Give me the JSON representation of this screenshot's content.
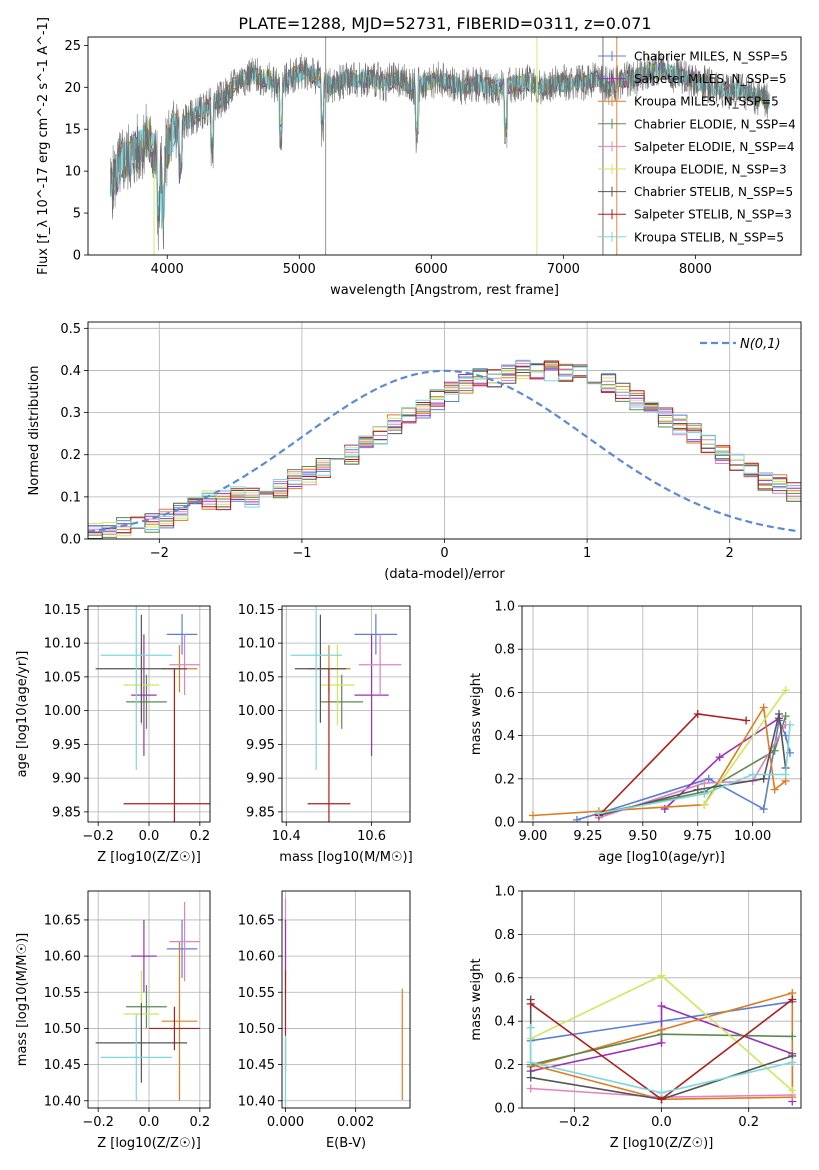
{
  "title": "PLATE=1288, MJD=52731, FIBERID=0311, z=0.071",
  "colors": {
    "Chabrier MILES": "#5b7fd6",
    "Salpeter MILES": "#9b30b8",
    "Kroupa MILES": "#e07b20",
    "Chabrier ELODIE": "#5d8a4e",
    "Salpeter ELODIE": "#e382c0",
    "Kroupa ELODIE": "#cfe85a",
    "Chabrier STELIB": "#555555",
    "Salpeter STELIB": "#b01c1c",
    "Kroupa STELIB": "#7fd6dd"
  },
  "chart_data": [
    {
      "type": "line",
      "title": "PLATE=1288, MJD=52731, FIBERID=0311, z=0.071",
      "xlabel": "wavelength [Angstrom, rest frame]",
      "ylabel": "Flux [f_λ 10^-17 erg cm^-2 s^-1 A^-1]",
      "xlim": [
        3400,
        8800
      ],
      "ylim": [
        0,
        26
      ],
      "xticks": [
        4000,
        5000,
        6000,
        7000,
        8000
      ],
      "yticks": [
        0,
        5,
        10,
        15,
        20,
        25
      ],
      "spectrum": {
        "x": [
          3570,
          3650,
          3750,
          3850,
          3950,
          4050,
          4150,
          4250,
          4350,
          4450,
          4550,
          4650,
          4750,
          4850,
          4950,
          5050,
          5150,
          5250,
          5350,
          5450,
          5550,
          5650,
          5750,
          5850,
          5950,
          6050,
          6150,
          6250,
          6350,
          6450,
          6550,
          6650,
          6750,
          6850,
          6950,
          7050,
          7150,
          7250,
          7350,
          7450,
          7550,
          7650,
          7750,
          7850,
          7950,
          8050,
          8150,
          8250,
          8350,
          8450,
          8550
        ],
        "y": [
          8,
          11,
          12,
          14,
          10,
          15,
          16,
          17,
          18,
          19,
          21,
          21.5,
          21,
          20,
          21.5,
          22,
          21,
          20,
          21,
          21,
          21,
          20.5,
          21,
          20,
          20.5,
          21,
          20.5,
          20,
          20.5,
          20,
          20,
          20.5,
          20.5,
          20,
          20.5,
          20.5,
          20.5,
          21,
          20,
          21,
          21,
          22,
          22,
          21.5,
          21,
          20.5,
          20,
          19.5,
          19.5,
          19,
          18.5
        ]
      },
      "legend_placement": "upper-right",
      "legend": [
        {
          "name": "Chabrier MILES",
          "label": "Chabrier MILES, N_SSP=5"
        },
        {
          "name": "Salpeter MILES",
          "label": "Salpeter MILES, N_SSP=5"
        },
        {
          "name": "Kroupa MILES",
          "label": "Kroupa MILES, N_SSP=5"
        },
        {
          "name": "Chabrier ELODIE",
          "label": "Chabrier ELODIE, N_SSP=4"
        },
        {
          "name": "Salpeter ELODIE",
          "label": "Salpeter ELODIE, N_SSP=4"
        },
        {
          "name": "Kroupa ELODIE",
          "label": "Kroupa ELODIE, N_SSP=3"
        },
        {
          "name": "Chabrier STELIB",
          "label": "Chabrier STELIB, N_SSP=5"
        },
        {
          "name": "Salpeter STELIB",
          "label": "Salpeter STELIB, N_SSP=3"
        },
        {
          "name": "Kroupa STELIB",
          "label": "Kroupa STELIB, N_SSP=5"
        }
      ]
    },
    {
      "type": "line",
      "xlabel": "(data-model)/error",
      "ylabel": "Normed distribution",
      "xlim": [
        -2.5,
        2.5
      ],
      "ylim": [
        0,
        0.515
      ],
      "xticks": [
        -2,
        -1,
        0,
        1,
        2
      ],
      "yticks": [
        0.0,
        0.1,
        0.2,
        0.3,
        0.4,
        0.5
      ],
      "grid": true,
      "legend_placement": "upper-right",
      "gaussian_label": "N(0,1)",
      "bin_width": 0.1,
      "bin_start": -2.5,
      "hist_base": [
        0.02,
        0.02,
        0.03,
        0.03,
        0.04,
        0.05,
        0.06,
        0.08,
        0.09,
        0.09,
        0.1,
        0.1,
        0.11,
        0.12,
        0.14,
        0.15,
        0.17,
        0.18,
        0.2,
        0.22,
        0.25,
        0.27,
        0.29,
        0.31,
        0.33,
        0.35,
        0.37,
        0.38,
        0.38,
        0.39,
        0.4,
        0.4,
        0.4,
        0.39,
        0.39,
        0.38,
        0.37,
        0.35,
        0.33,
        0.31,
        0.29,
        0.27,
        0.25,
        0.23,
        0.2,
        0.18,
        0.16,
        0.14,
        0.13,
        0.11,
        0.1
      ]
    },
    {
      "type": "scatter",
      "xlabel": "Z [log10(Z/Z☉)]",
      "ylabel": "age [log10(age/yr)]",
      "xlim": [
        -0.24,
        0.24
      ],
      "ylim": [
        9.835,
        10.155
      ],
      "xticks": [
        -0.2,
        0.0,
        0.2
      ],
      "yticks": [
        9.85,
        9.9,
        9.95,
        10.0,
        10.05,
        10.1,
        10.15
      ],
      "points": [
        {
          "name": "Chabrier MILES",
          "x": 0.13,
          "y": 10.113,
          "xerr": 0.06,
          "yerr": 0.03
        },
        {
          "name": "Salpeter MILES",
          "x": -0.02,
          "y": 10.023,
          "xerr": 0.05,
          "yerr": 0.09
        },
        {
          "name": "Kroupa MILES",
          "x": 0.12,
          "y": 10.062,
          "xerr": 0.07,
          "yerr": 0.035
        },
        {
          "name": "Chabrier ELODIE",
          "x": -0.01,
          "y": 10.013,
          "xerr": 0.08,
          "yerr": 0.04
        },
        {
          "name": "Salpeter ELODIE",
          "x": 0.14,
          "y": 10.068,
          "xerr": 0.06,
          "yerr": 0.045
        },
        {
          "name": "Kroupa ELODIE",
          "x": -0.03,
          "y": 10.038,
          "xerr": 0.07,
          "yerr": 0.06
        },
        {
          "name": "Chabrier STELIB",
          "x": -0.03,
          "y": 10.062,
          "xerr": 0.18,
          "yerr": 0.08
        },
        {
          "name": "Salpeter STELIB",
          "x": 0.1,
          "y": 9.862,
          "xerr": 0.2,
          "yerr": 0.2
        },
        {
          "name": "Kroupa STELIB",
          "x": -0.05,
          "y": 10.082,
          "xerr": 0.14,
          "yerr": 0.17
        }
      ]
    },
    {
      "type": "scatter",
      "xlabel": "mass [log10(M/M☉)]",
      "ylim": [
        9.835,
        10.155
      ],
      "xlim": [
        10.39,
        10.69
      ],
      "xticks": [
        10.4,
        10.6
      ],
      "yticks": [
        9.85,
        9.9,
        9.95,
        10.0,
        10.05,
        10.1,
        10.15
      ],
      "points": [
        {
          "name": "Chabrier MILES",
          "x": 10.61,
          "y": 10.113,
          "xerr": 0.05,
          "yerr": 0.03
        },
        {
          "name": "Salpeter MILES",
          "x": 10.6,
          "y": 10.023,
          "xerr": 0.04,
          "yerr": 0.09
        },
        {
          "name": "Kroupa MILES",
          "x": 10.5,
          "y": 10.062,
          "xerr": 0.05,
          "yerr": 0.035
        },
        {
          "name": "Chabrier ELODIE",
          "x": 10.53,
          "y": 10.013,
          "xerr": 0.05,
          "yerr": 0.04
        },
        {
          "name": "Salpeter ELODIE",
          "x": 10.62,
          "y": 10.068,
          "xerr": 0.05,
          "yerr": 0.045
        },
        {
          "name": "Kroupa ELODIE",
          "x": 10.52,
          "y": 10.038,
          "xerr": 0.04,
          "yerr": 0.06
        },
        {
          "name": "Chabrier STELIB",
          "x": 10.48,
          "y": 10.062,
          "xerr": 0.06,
          "yerr": 0.08
        },
        {
          "name": "Salpeter STELIB",
          "x": 10.5,
          "y": 9.862,
          "xerr": 0.05,
          "yerr": 0.2
        },
        {
          "name": "Kroupa STELIB",
          "x": 10.47,
          "y": 10.082,
          "xerr": 0.06,
          "yerr": 0.17
        }
      ]
    },
    {
      "type": "line",
      "xlabel": "age [log10(age/yr)]",
      "ylabel": "mass weight",
      "xlim": [
        8.95,
        10.22
      ],
      "ylim": [
        0,
        1.0
      ],
      "xticks": [
        9.0,
        9.25,
        9.5,
        9.75,
        10.0
      ],
      "yticks": [
        0.0,
        0.2,
        0.4,
        0.6,
        0.8,
        1.0
      ],
      "grid": true,
      "series": [
        {
          "name": "Chabrier MILES",
          "x": [
            9.2,
            9.3,
            9.8,
            10.05,
            10.12,
            10.15,
            10.17
          ],
          "y": [
            0.01,
            0.04,
            0.2,
            0.06,
            0.47,
            0.4,
            0.32
          ]
        },
        {
          "name": "Salpeter MILES",
          "x": [
            9.6,
            9.85,
            10.12
          ],
          "y": [
            0.06,
            0.3,
            0.48
          ]
        },
        {
          "name": "Kroupa MILES",
          "x": [
            9.0,
            9.3,
            9.78,
            10.05,
            10.1,
            10.15
          ],
          "y": [
            0.03,
            0.05,
            0.08,
            0.53,
            0.15,
            0.19
          ]
        },
        {
          "name": "Chabrier ELODIE",
          "x": [
            9.3,
            9.78,
            10.1,
            10.15
          ],
          "y": [
            0.04,
            0.14,
            0.33,
            0.49
          ]
        },
        {
          "name": "Salpeter ELODIE",
          "x": [
            9.3,
            9.78,
            10.0,
            10.15
          ],
          "y": [
            0.02,
            0.18,
            0.19,
            0.45
          ]
        },
        {
          "name": "Kroupa ELODIE",
          "x": [
            9.78,
            10.15
          ],
          "y": [
            0.08,
            0.61
          ]
        },
        {
          "name": "Chabrier STELIB",
          "x": [
            9.3,
            9.75,
            10.05,
            10.12,
            10.15
          ],
          "y": [
            0.03,
            0.15,
            0.2,
            0.5,
            0.25
          ]
        },
        {
          "name": "Salpeter STELIB",
          "x": [
            9.3,
            9.75,
            9.97
          ],
          "y": [
            0.03,
            0.5,
            0.47
          ]
        },
        {
          "name": "Kroupa STELIB",
          "x": [
            9.3,
            9.78,
            10.0,
            10.15,
            10.17
          ],
          "y": [
            0.04,
            0.13,
            0.22,
            0.22,
            0.45
          ]
        }
      ]
    },
    {
      "type": "scatter",
      "xlabel": "Z [log10(Z/Z☉)]",
      "ylabel": "mass [log10(M/M☉)]",
      "xlim": [
        -0.24,
        0.24
      ],
      "ylim": [
        10.39,
        10.69
      ],
      "xticks": [
        -0.2,
        0.0,
        0.2
      ],
      "yticks": [
        10.4,
        10.45,
        10.5,
        10.55,
        10.6,
        10.65
      ],
      "points": [
        {
          "name": "Chabrier MILES",
          "x": 0.13,
          "y": 10.61,
          "xerr": 0.06,
          "yerr": 0.04
        },
        {
          "name": "Salpeter MILES",
          "x": -0.02,
          "y": 10.6,
          "xerr": 0.05,
          "yerr": 0.05
        },
        {
          "name": "Kroupa MILES",
          "x": 0.12,
          "y": 10.51,
          "xerr": 0.07,
          "yerr": 0.11
        },
        {
          "name": "Chabrier ELODIE",
          "x": -0.01,
          "y": 10.53,
          "xerr": 0.08,
          "yerr": 0.03
        },
        {
          "name": "Salpeter ELODIE",
          "x": 0.14,
          "y": 10.62,
          "xerr": 0.06,
          "yerr": 0.055
        },
        {
          "name": "Kroupa ELODIE",
          "x": -0.03,
          "y": 10.52,
          "xerr": 0.07,
          "yerr": 0.06
        },
        {
          "name": "Chabrier STELIB",
          "x": -0.03,
          "y": 10.48,
          "xerr": 0.18,
          "yerr": 0.055
        },
        {
          "name": "Salpeter STELIB",
          "x": 0.1,
          "y": 10.5,
          "xerr": 0.1,
          "yerr": 0.03
        },
        {
          "name": "Kroupa STELIB",
          "x": -0.05,
          "y": 10.46,
          "xerr": 0.14,
          "yerr": 0.06
        }
      ]
    },
    {
      "type": "scatter",
      "xlabel": "E(B-V)",
      "xlim": [
        -0.0001,
        0.00355
      ],
      "ylim": [
        10.39,
        10.69
      ],
      "xticks": [
        0.0,
        0.002
      ],
      "yticks": [
        10.4,
        10.45,
        10.5,
        10.55,
        10.6,
        10.65
      ],
      "points": [
        {
          "name": "Salpeter ELODIE",
          "x": 0.0,
          "y": 10.63,
          "yerr": 0.05
        },
        {
          "name": "Salpeter MILES",
          "x": 0.0,
          "y": 10.6,
          "yerr": 0.05
        },
        {
          "name": "Salpeter STELIB",
          "x": 0.0,
          "y": 10.51,
          "yerr": 0.07
        },
        {
          "name": "Kroupa STELIB",
          "x": 0.0,
          "y": 10.44,
          "yerr": 0.05
        },
        {
          "name": "Kroupa MILES",
          "x": 0.00333,
          "y": 10.478,
          "yerr": 0.077
        }
      ]
    },
    {
      "type": "line",
      "xlabel": "Z [log10(Z/Z☉)]",
      "ylabel": "mass weight",
      "xlim": [
        -0.32,
        0.32
      ],
      "ylim": [
        0,
        1.0
      ],
      "xticks": [
        -0.2,
        0.0,
        0.2
      ],
      "yticks": [
        0.0,
        0.2,
        0.4,
        0.6,
        0.8,
        1.0
      ],
      "grid": true,
      "series": [
        {
          "name": "Chabrier MILES",
          "x": [
            -0.3,
            0.3
          ],
          "y": [
            0.31,
            0.49
          ]
        },
        {
          "name": "Salpeter MILES",
          "x": [
            -0.3,
            0.0,
            0.0,
            0.3,
            0.3
          ],
          "y": [
            0.17,
            0.3,
            0.47,
            0.25,
            0.03
          ]
        },
        {
          "name": "Kroupa MILES",
          "x": [
            -0.3,
            0.0,
            0.3,
            0.3,
            0.0,
            -0.3
          ],
          "y": [
            0.19,
            0.36,
            0.53,
            0.05,
            0.04,
            0.2
          ]
        },
        {
          "name": "Chabrier ELODIE",
          "x": [
            -0.3,
            0.0,
            0.3
          ],
          "y": [
            0.2,
            0.34,
            0.33
          ]
        },
        {
          "name": "Salpeter ELODIE",
          "x": [
            -0.3,
            0.0,
            0.3
          ],
          "y": [
            0.09,
            0.05,
            0.06
          ]
        },
        {
          "name": "Kroupa ELODIE",
          "x": [
            -0.3,
            0.0,
            0.3
          ],
          "y": [
            0.32,
            0.61,
            0.08
          ]
        },
        {
          "name": "Chabrier STELIB",
          "x": [
            -0.3,
            -0.3,
            0.0,
            0.3
          ],
          "y": [
            0.5,
            0.14,
            0.04,
            0.24
          ]
        },
        {
          "name": "Salpeter STELIB",
          "x": [
            -0.3,
            0.0,
            0.3
          ],
          "y": [
            0.48,
            0.04,
            0.5
          ]
        },
        {
          "name": "Kroupa STELIB",
          "x": [
            -0.3,
            -0.3,
            0.0,
            0.3
          ],
          "y": [
            0.37,
            0.21,
            0.07,
            0.21
          ]
        }
      ]
    }
  ]
}
